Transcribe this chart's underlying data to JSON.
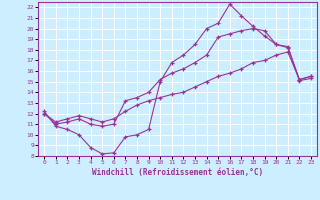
{
  "xlabel": "Windchill (Refroidissement éolien,°C)",
  "bg_color": "#cceeff",
  "line_color": "#993399",
  "grid_color": "#ffffff",
  "spine_color": "#993399",
  "xlim": [
    -0.5,
    23.5
  ],
  "ylim": [
    8,
    22.5
  ],
  "yticks": [
    8,
    9,
    10,
    11,
    12,
    13,
    14,
    15,
    16,
    17,
    18,
    19,
    20,
    21,
    22
  ],
  "xticks": [
    0,
    1,
    2,
    3,
    4,
    5,
    6,
    7,
    8,
    9,
    10,
    11,
    12,
    13,
    14,
    15,
    16,
    17,
    18,
    19,
    20,
    21,
    22,
    23
  ],
  "line1_x": [
    0,
    1,
    2,
    3,
    4,
    5,
    6,
    7,
    8,
    9,
    10,
    11,
    12,
    13,
    14,
    15,
    16,
    17,
    18,
    19,
    20,
    21,
    22,
    23
  ],
  "line1_y": [
    12.2,
    10.8,
    10.5,
    10.0,
    8.8,
    8.2,
    8.3,
    9.8,
    10.0,
    10.5,
    15.0,
    16.8,
    17.5,
    18.5,
    20.0,
    20.5,
    22.3,
    21.2,
    20.2,
    19.3,
    18.5,
    18.2,
    15.1,
    15.3
  ],
  "line2_x": [
    0,
    1,
    2,
    3,
    4,
    5,
    6,
    7,
    8,
    9,
    10,
    11,
    12,
    13,
    14,
    15,
    16,
    17,
    18,
    19,
    20,
    21,
    22,
    23
  ],
  "line2_y": [
    12.0,
    11.0,
    11.2,
    11.5,
    11.0,
    10.8,
    11.0,
    13.2,
    13.5,
    14.0,
    15.2,
    15.8,
    16.2,
    16.8,
    17.5,
    19.2,
    19.5,
    19.8,
    20.0,
    19.8,
    18.5,
    18.3,
    15.2,
    15.5
  ],
  "line3_x": [
    0,
    1,
    2,
    3,
    4,
    5,
    6,
    7,
    8,
    9,
    10,
    11,
    12,
    13,
    14,
    15,
    16,
    17,
    18,
    19,
    20,
    21,
    22,
    23
  ],
  "line3_y": [
    12.0,
    11.2,
    11.5,
    11.8,
    11.5,
    11.2,
    11.5,
    12.2,
    12.8,
    13.2,
    13.5,
    13.8,
    14.0,
    14.5,
    15.0,
    15.5,
    15.8,
    16.2,
    16.8,
    17.0,
    17.5,
    17.8,
    15.2,
    15.5
  ]
}
